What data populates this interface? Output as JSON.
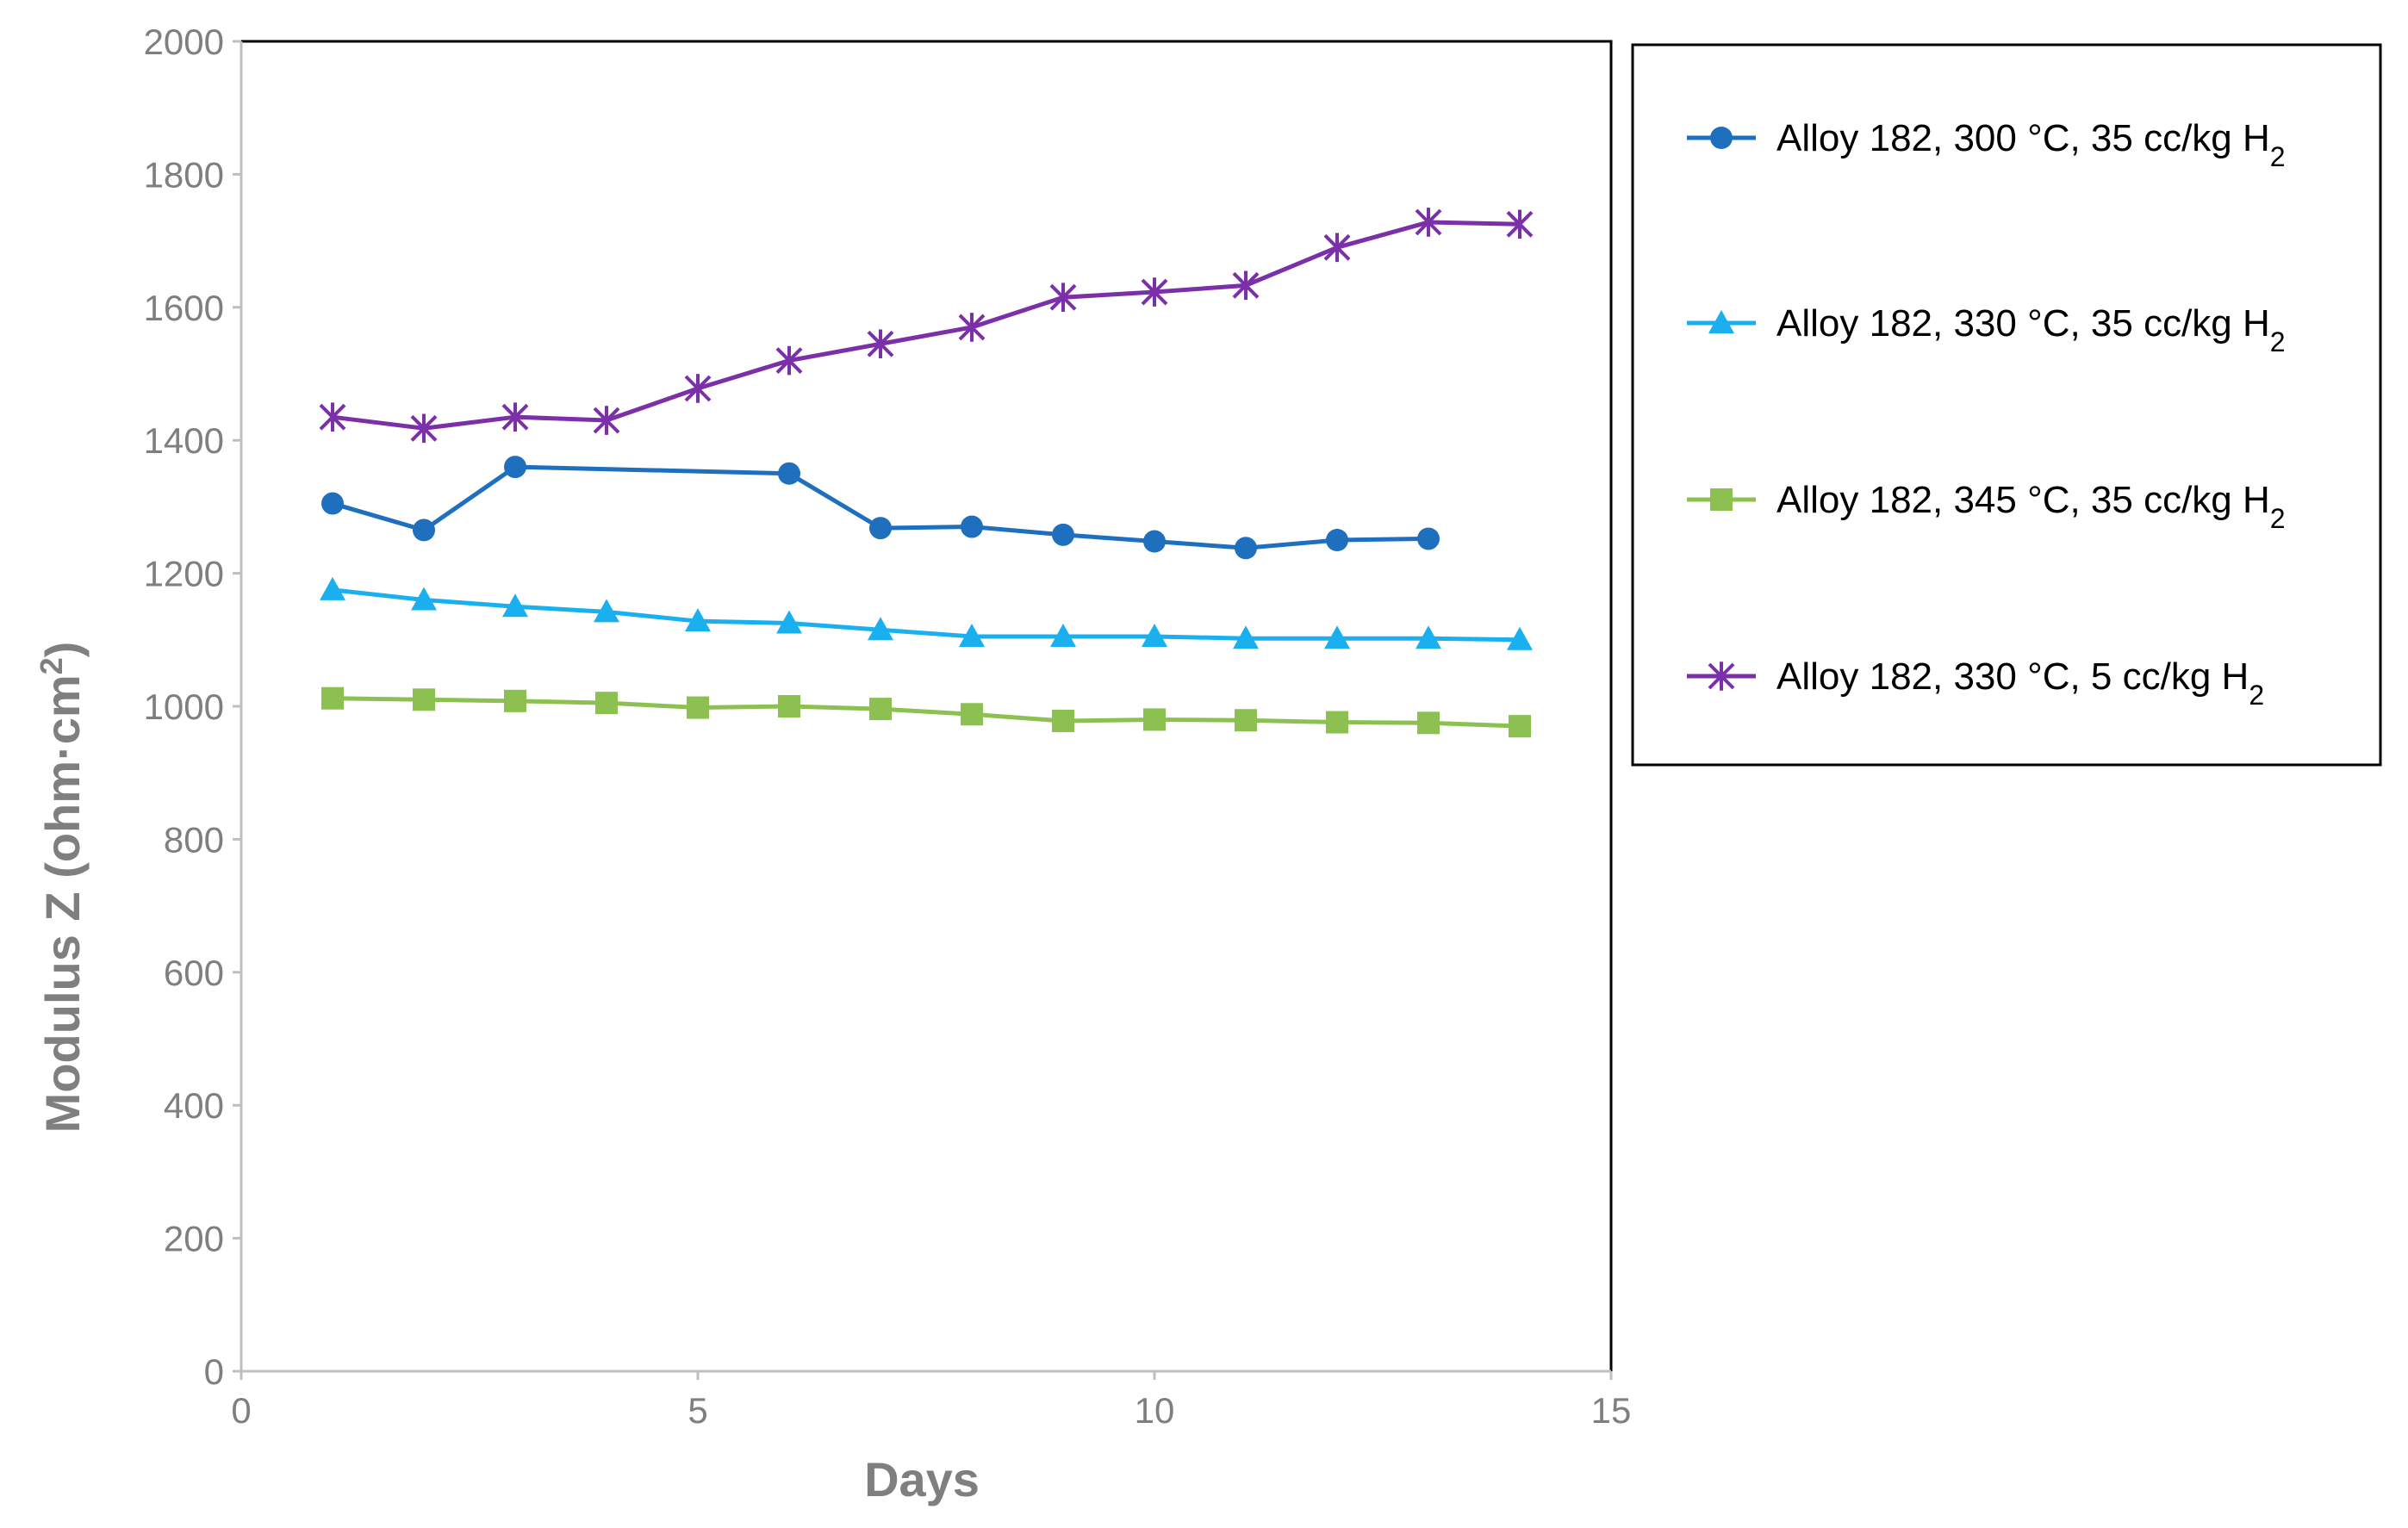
{
  "chart_data": {
    "type": "line",
    "title": "",
    "xlabel": "Days",
    "ylabel": {
      "main": "Modulus Z (ohm·cm",
      "sup": "2",
      "close": ")"
    },
    "xlim": [
      0,
      15
    ],
    "ylim": [
      0,
      2000
    ],
    "xticks": [
      "0",
      "5",
      "10",
      "15"
    ],
    "yticks": [
      "0",
      "200",
      "400",
      "600",
      "800",
      "1000",
      "1200",
      "1400",
      "1600",
      "1800",
      "2000"
    ],
    "grid": false,
    "legend_position": "right",
    "series": [
      {
        "name": {
          "main": "Alloy 182, 300 °C, 35 cc/kg H",
          "sub": "2"
        },
        "color": "#1f6fbf",
        "marker": "circle",
        "x": [
          1,
          2,
          3,
          6,
          7,
          8,
          9,
          10,
          11,
          12,
          13
        ],
        "y": [
          1305,
          1265,
          1360,
          1350,
          1268,
          1270,
          1258,
          1248,
          1238,
          1250,
          1252
        ]
      },
      {
        "name": {
          "main": "Alloy 182, 330 °C, 35 cc/kg H",
          "sub": "2"
        },
        "color": "#1ab0f0",
        "marker": "triangle",
        "x": [
          1,
          2,
          3,
          4,
          5,
          6,
          7,
          8,
          9,
          10,
          11,
          12,
          13,
          14
        ],
        "y": [
          1175,
          1160,
          1150,
          1142,
          1128,
          1125,
          1115,
          1105,
          1105,
          1105,
          1102,
          1102,
          1102,
          1100
        ]
      },
      {
        "name": {
          "main": "Alloy 182, 345 °C, 35 cc/kg H",
          "sub": "2"
        },
        "color": "#8cc152",
        "marker": "square",
        "x": [
          1,
          2,
          3,
          4,
          5,
          6,
          7,
          8,
          9,
          10,
          11,
          12,
          13,
          14
        ],
        "y": [
          1012,
          1010,
          1008,
          1005,
          998,
          1000,
          996,
          988,
          978,
          980,
          979,
          976,
          975,
          970
        ]
      },
      {
        "name": {
          "main": "Alloy 182, 330 °C, 5 cc/kg H",
          "sub": "2"
        },
        "color": "#7b2fa8",
        "marker": "asterisk",
        "x": [
          1,
          2,
          3,
          4,
          5,
          6,
          7,
          8,
          9,
          10,
          11,
          12,
          13,
          14
        ],
        "y": [
          1435,
          1418,
          1435,
          1430,
          1478,
          1520,
          1545,
          1570,
          1615,
          1623,
          1633,
          1690,
          1728,
          1725
        ]
      }
    ]
  }
}
